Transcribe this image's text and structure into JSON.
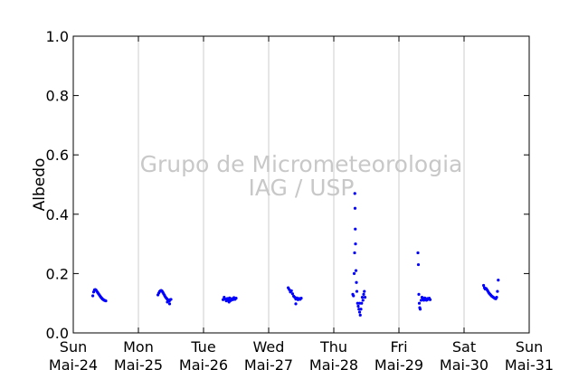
{
  "chart_data": {
    "type": "scatter",
    "ylabel": "Albedo",
    "ylim": [
      0.0,
      1.0
    ],
    "yticks": [
      {
        "value": 0.0,
        "label": "0.0"
      },
      {
        "value": 0.2,
        "label": "0.2"
      },
      {
        "value": 0.4,
        "label": "0.4"
      },
      {
        "value": 0.6,
        "label": "0.6"
      },
      {
        "value": 0.8,
        "label": "0.8"
      },
      {
        "value": 1.0,
        "label": "1.0"
      }
    ],
    "xlim": [
      "Mai-24 00:00",
      "Mai-31 00:00"
    ],
    "xticks": [
      {
        "day": "Sun",
        "date": "Mai-24"
      },
      {
        "day": "Mon",
        "date": "Mai-25"
      },
      {
        "day": "Tue",
        "date": "Mai-26"
      },
      {
        "day": "Wed",
        "date": "Mai-27"
      },
      {
        "day": "Thu",
        "date": "Mai-28"
      },
      {
        "day": "Fri",
        "date": "Mai-29"
      },
      {
        "day": "Sat",
        "date": "Mai-30"
      },
      {
        "day": "Sun",
        "date": "Mai-31"
      }
    ],
    "grid": "vertical",
    "marker_color": "#0000ff",
    "watermark": [
      "Grupo de Micrometeorologia",
      "IAG / USP"
    ],
    "series": [
      {
        "points": [
          [
            "Mai-24 07:12",
            0.125
          ],
          [
            "Mai-24 07:30",
            0.138
          ],
          [
            "Mai-24 07:48",
            0.145
          ],
          [
            "Mai-24 08:06",
            0.146
          ],
          [
            "Mai-24 08:24",
            0.144
          ],
          [
            "Mai-24 08:42",
            0.14
          ],
          [
            "Mai-24 09:00",
            0.136
          ],
          [
            "Mai-24 09:18",
            0.132
          ],
          [
            "Mai-24 09:36",
            0.128
          ],
          [
            "Mai-24 09:54",
            0.124
          ],
          [
            "Mai-24 10:12",
            0.12
          ],
          [
            "Mai-24 10:30",
            0.117
          ],
          [
            "Mai-24 10:48",
            0.114
          ],
          [
            "Mai-24 11:06",
            0.112
          ],
          [
            "Mai-24 11:24",
            0.11
          ],
          [
            "Mai-24 11:42",
            0.109
          ],
          [
            "Mai-24 12:00",
            0.108
          ],
          [
            "Mai-25 07:12",
            0.128
          ],
          [
            "Mai-25 07:30",
            0.134
          ],
          [
            "Mai-25 07:48",
            0.139
          ],
          [
            "Mai-25 08:06",
            0.142
          ],
          [
            "Mai-25 08:24",
            0.143
          ],
          [
            "Mai-25 08:42",
            0.141
          ],
          [
            "Mai-25 09:00",
            0.137
          ],
          [
            "Mai-25 09:18",
            0.132
          ],
          [
            "Mai-25 09:36",
            0.127
          ],
          [
            "Mai-25 09:54",
            0.122
          ],
          [
            "Mai-25 10:12",
            0.118
          ],
          [
            "Mai-25 10:30",
            0.115
          ],
          [
            "Mai-25 10:48",
            0.112
          ],
          [
            "Mai-25 11:06",
            0.11
          ],
          [
            "Mai-25 11:24",
            0.108
          ],
          [
            "Mai-25 11:42",
            0.112
          ],
          [
            "Mai-25 12:00",
            0.113
          ],
          [
            "Mai-25 11:30",
            0.098
          ],
          [
            "Mai-25 10:40",
            0.104
          ],
          [
            "Mai-26 07:12",
            0.112
          ],
          [
            "Mai-26 07:36",
            0.12
          ],
          [
            "Mai-26 08:00",
            0.114
          ],
          [
            "Mai-26 08:24",
            0.108
          ],
          [
            "Mai-26 08:48",
            0.116
          ],
          [
            "Mai-26 09:12",
            0.111
          ],
          [
            "Mai-26 09:36",
            0.118
          ],
          [
            "Mai-26 10:00",
            0.109
          ],
          [
            "Mai-26 10:24",
            0.115
          ],
          [
            "Mai-26 10:48",
            0.112
          ],
          [
            "Mai-26 11:12",
            0.119
          ],
          [
            "Mai-26 11:36",
            0.113
          ],
          [
            "Mai-26 12:00",
            0.117
          ],
          [
            "Mai-26 09:24",
            0.104
          ],
          [
            "Mai-27 07:12",
            0.152
          ],
          [
            "Mai-27 07:36",
            0.146
          ],
          [
            "Mai-27 08:00",
            0.138
          ],
          [
            "Mai-27 08:24",
            0.142
          ],
          [
            "Mai-27 08:48",
            0.132
          ],
          [
            "Mai-27 09:12",
            0.124
          ],
          [
            "Mai-27 09:36",
            0.12
          ],
          [
            "Mai-27 10:00",
            0.114
          ],
          [
            "Mai-27 10:24",
            0.118
          ],
          [
            "Mai-27 10:48",
            0.112
          ],
          [
            "Mai-27 11:12",
            0.116
          ],
          [
            "Mai-27 11:36",
            0.113
          ],
          [
            "Mai-27 12:00",
            0.117
          ],
          [
            "Mai-27 10:00",
            0.098
          ],
          [
            "Mai-28 07:00",
            0.13
          ],
          [
            "Mai-28 07:15",
            0.125
          ],
          [
            "Mai-28 07:30",
            0.2
          ],
          [
            "Mai-28 07:40",
            0.27
          ],
          [
            "Mai-28 07:45",
            0.47
          ],
          [
            "Mai-28 07:50",
            0.42
          ],
          [
            "Mai-28 07:55",
            0.35
          ],
          [
            "Mai-28 08:00",
            0.3
          ],
          [
            "Mai-28 08:10",
            0.21
          ],
          [
            "Mai-28 08:20",
            0.17
          ],
          [
            "Mai-28 08:30",
            0.14
          ],
          [
            "Mai-28 08:45",
            0.1
          ],
          [
            "Mai-28 09:00",
            0.09
          ],
          [
            "Mai-28 09:15",
            0.08
          ],
          [
            "Mai-28 09:30",
            0.07
          ],
          [
            "Mai-28 09:45",
            0.06
          ],
          [
            "Mai-28 10:00",
            0.08
          ],
          [
            "Mai-28 10:15",
            0.1
          ],
          [
            "Mai-28 10:30",
            0.12
          ],
          [
            "Mai-28 10:45",
            0.11
          ],
          [
            "Mai-28 11:00",
            0.13
          ],
          [
            "Mai-28 11:15",
            0.14
          ],
          [
            "Mai-28 11:30",
            0.12
          ],
          [
            "Mai-28 09:30",
            0.1
          ],
          [
            "Mai-29 07:00",
            0.27
          ],
          [
            "Mai-29 07:10",
            0.23
          ],
          [
            "Mai-29 07:20",
            0.13
          ],
          [
            "Mai-29 07:30",
            0.1
          ],
          [
            "Mai-29 07:40",
            0.085
          ],
          [
            "Mai-29 07:50",
            0.08
          ],
          [
            "Mai-29 08:10",
            0.11
          ],
          [
            "Mai-29 08:30",
            0.12
          ],
          [
            "Mai-29 08:50",
            0.115
          ],
          [
            "Mai-29 09:10",
            0.11
          ],
          [
            "Mai-29 09:30",
            0.118
          ],
          [
            "Mai-29 09:50",
            0.112
          ],
          [
            "Mai-29 10:10",
            0.11
          ],
          [
            "Mai-29 10:30",
            0.116
          ],
          [
            "Mai-29 10:50",
            0.113
          ],
          [
            "Mai-29 11:10",
            0.117
          ],
          [
            "Mai-29 11:30",
            0.112
          ],
          [
            "Mai-30 07:12",
            0.16
          ],
          [
            "Mai-30 07:30",
            0.152
          ],
          [
            "Mai-30 07:48",
            0.148
          ],
          [
            "Mai-30 08:06",
            0.15
          ],
          [
            "Mai-30 08:24",
            0.146
          ],
          [
            "Mai-30 08:42",
            0.142
          ],
          [
            "Mai-30 09:00",
            0.137
          ],
          [
            "Mai-30 09:18",
            0.133
          ],
          [
            "Mai-30 09:36",
            0.13
          ],
          [
            "Mai-30 09:54",
            0.127
          ],
          [
            "Mai-30 10:12",
            0.124
          ],
          [
            "Mai-30 10:30",
            0.122
          ],
          [
            "Mai-30 10:48",
            0.12
          ],
          [
            "Mai-30 11:06",
            0.118
          ],
          [
            "Mai-30 11:24",
            0.116
          ],
          [
            "Mai-30 11:42",
            0.115
          ],
          [
            "Mai-30 12:00",
            0.12
          ],
          [
            "Mai-30 12:18",
            0.14
          ],
          [
            "Mai-30 12:36",
            0.178
          ]
        ]
      }
    ]
  }
}
